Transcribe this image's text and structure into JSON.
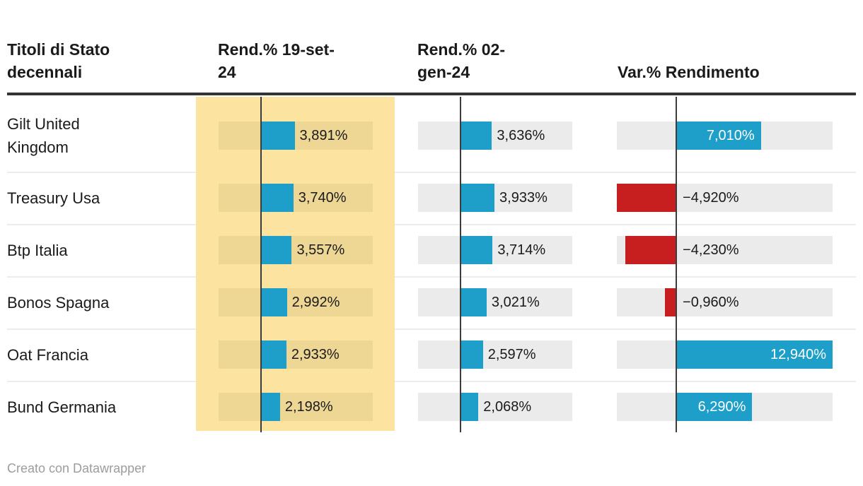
{
  "header": {
    "columns": [
      {
        "lines": [
          "Titoli di Stato",
          "decennali"
        ]
      },
      {
        "lines": [
          "Rend.% 19-set-",
          "24"
        ]
      },
      {
        "lines": [
          "Rend.% 02-",
          "gen-24"
        ]
      },
      {
        "lines": [
          "",
          "Var.% Rendimento"
        ]
      }
    ]
  },
  "footer": {
    "credit": "Creato con Datawrapper"
  },
  "colors": {
    "positive_bar": "#1d9fc9",
    "negative_bar": "#c71f1f",
    "column_highlight": "#fde3a0",
    "highlight_track": "#eed795",
    "track": "#ebebeb",
    "axis_line": "#3c3c3c",
    "header_rule": "#333333",
    "separator": "#ececec",
    "text_dark": "#1a1a1a",
    "text_light": "#ffffff",
    "credit_text": "#9c9c9c"
  },
  "chart_data": {
    "type": "table",
    "title": "Titoli di Stato decennali",
    "categories": [
      "Gilt United Kingdom",
      "Treasury Usa",
      "Btp Italia",
      "Bonos Spagna",
      "Oat Francia",
      "Bund Germania"
    ],
    "series": [
      {
        "name": "Rend.% 19-set-24",
        "highlighted": true,
        "values": [
          3.891,
          3.74,
          3.557,
          2.992,
          2.933,
          2.198
        ],
        "labels": [
          "3,891%",
          "3,740%",
          "3,557%",
          "2,992%",
          "2,933%",
          "2,198%"
        ]
      },
      {
        "name": "Rend.% 02-gen-24",
        "highlighted": false,
        "values": [
          3.636,
          3.933,
          3.714,
          3.021,
          2.597,
          2.068
        ],
        "labels": [
          "3,636%",
          "3,933%",
          "3,714%",
          "3,021%",
          "2,597%",
          "2,068%"
        ]
      },
      {
        "name": "Var.% Rendimento",
        "highlighted": false,
        "values": [
          7.01,
          -4.92,
          -4.23,
          -0.96,
          12.94,
          6.29
        ],
        "labels": [
          "7,010%",
          "−4,920%",
          "−4,230%",
          "−0,960%",
          "12,940%",
          "6,290%"
        ]
      }
    ],
    "bar_axis_domain": [
      -4.92,
      12.94
    ],
    "bar_baseline": 0,
    "legend": "none",
    "grid": "none"
  }
}
